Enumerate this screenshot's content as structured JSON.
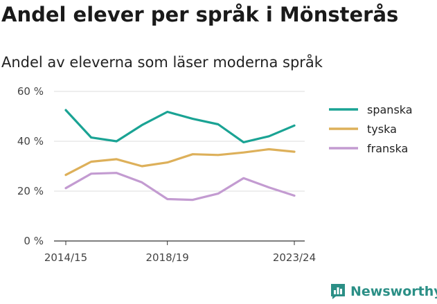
{
  "title": "Andel elever per språk i Mönsterås",
  "subtitle": "Andel av eleverna som läser moderna språk",
  "brand": {
    "name": "Newsworthy",
    "icon": "newsworthy-logo-icon",
    "color": "#2b8f86"
  },
  "chart_data": {
    "type": "line",
    "x": [
      "2014/15",
      "2015/16",
      "2016/17",
      "2017/18",
      "2018/19",
      "2019/20",
      "2020/21",
      "2021/22",
      "2022/23",
      "2023/24"
    ],
    "x_tick_labels": [
      "2014/15",
      "2018/19",
      "2023/24"
    ],
    "y_ticks": [
      0,
      20,
      40,
      60
    ],
    "y_tick_labels": [
      "0 %",
      "20 %",
      "40 %",
      "60 %"
    ],
    "ylim": [
      0,
      60
    ],
    "grid": true,
    "legend": "right",
    "series": [
      {
        "name": "spanska",
        "color": "#1aa394",
        "values": [
          52.5,
          41.5,
          40.0,
          46.5,
          51.8,
          49.0,
          46.8,
          39.6,
          42.0,
          46.3
        ]
      },
      {
        "name": "tyska",
        "color": "#ddb05a",
        "values": [
          26.5,
          31.8,
          32.8,
          30.0,
          31.5,
          34.8,
          34.5,
          35.5,
          36.8,
          35.8
        ]
      },
      {
        "name": "franska",
        "color": "#c39bd1",
        "values": [
          21.2,
          27.0,
          27.3,
          23.5,
          16.8,
          16.5,
          19.0,
          25.2,
          21.5,
          18.2
        ]
      }
    ]
  }
}
